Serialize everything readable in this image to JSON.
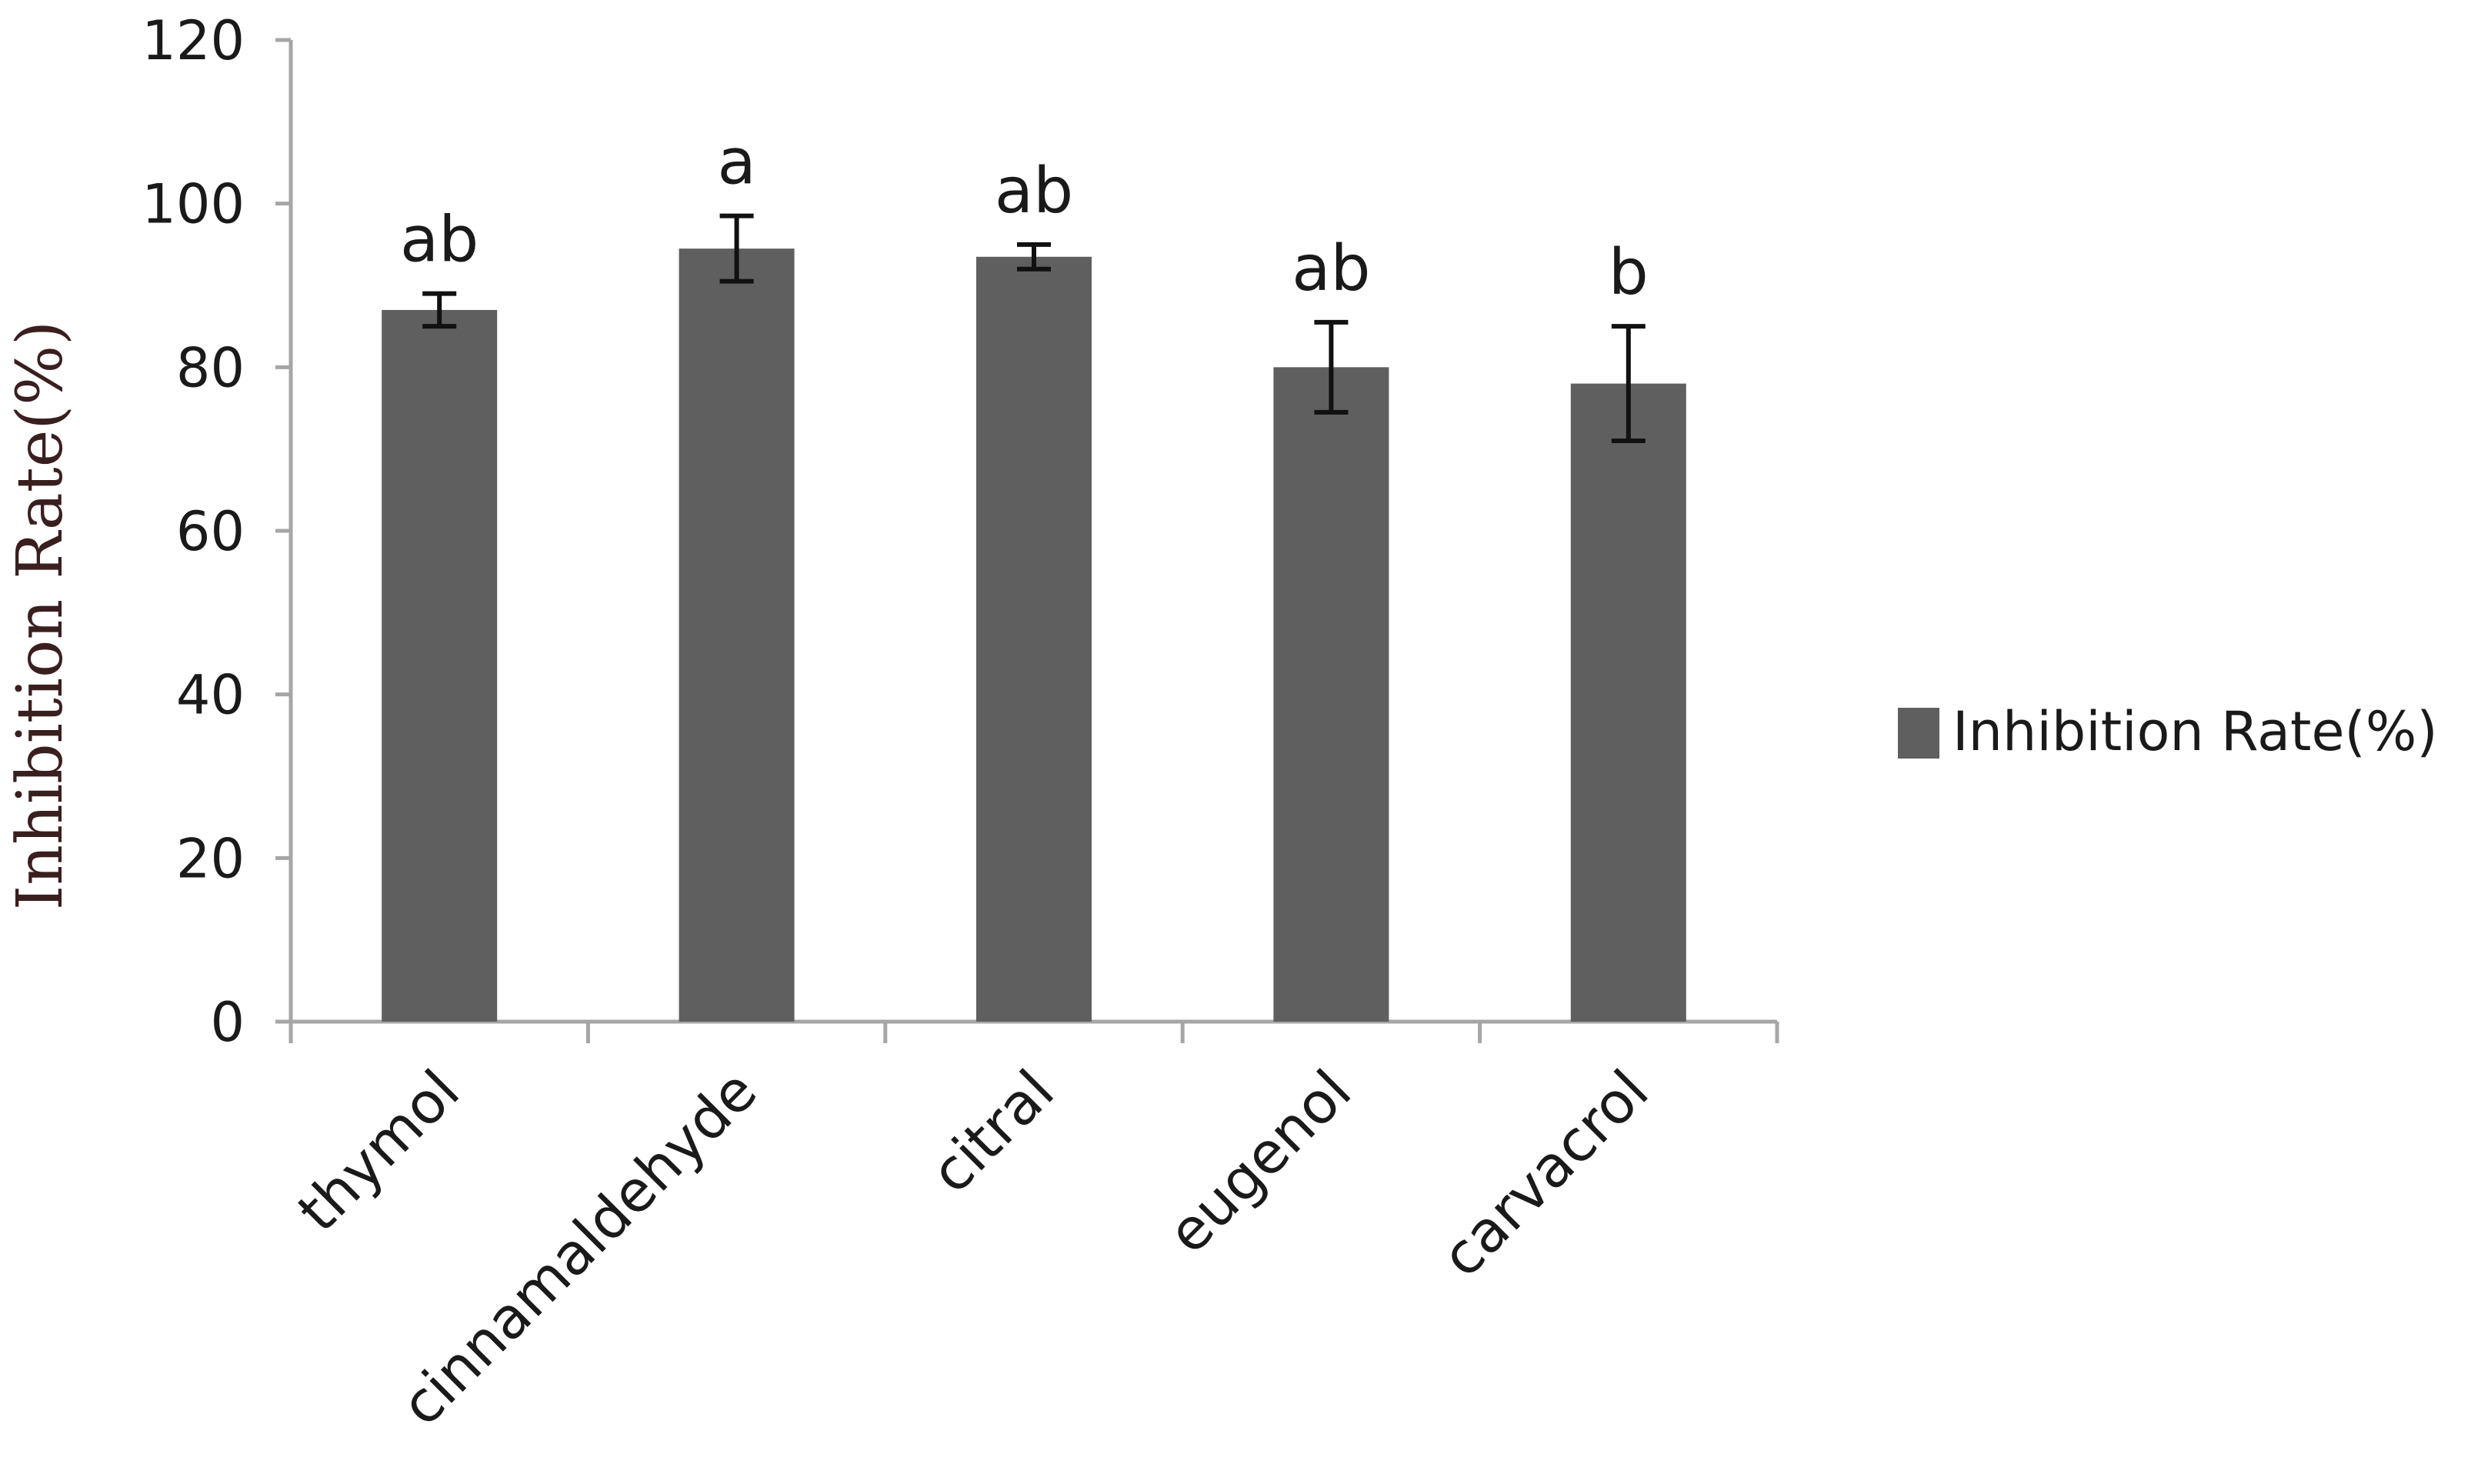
{
  "chart_data": {
    "type": "bar",
    "categories": [
      "thymol",
      "cinnamaldehyde",
      "citral",
      "eugenol",
      "carvacrol"
    ],
    "series": [
      {
        "name": "Inhibition Rate(%)",
        "values": [
          87,
          94.5,
          93.5,
          80,
          78
        ],
        "errors": [
          2,
          4,
          1.5,
          5.5,
          7
        ],
        "significance": [
          "ab",
          "a",
          "ab",
          "ab",
          "b"
        ]
      }
    ],
    "ylabel": "Inhibition Rate(%)",
    "xlabel": "",
    "ylim": [
      0,
      120
    ],
    "yticks": [
      0,
      20,
      40,
      60,
      80,
      100,
      120
    ],
    "legend_position": "right",
    "grid": false,
    "bar_color": "#5f5f5f",
    "axis_color": "#a6a6a6"
  }
}
